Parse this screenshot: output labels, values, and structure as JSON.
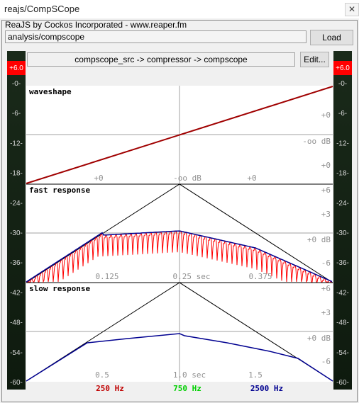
{
  "window": {
    "title": "reajs/CompSCope",
    "close_icon": "close-icon"
  },
  "plugin": {
    "info": "ReaJS by Cockos Incorporated - www.reaper.fm",
    "path": "analysis/compscope",
    "load_label": "Load",
    "edit_label": "Edit...",
    "chain": "compscope_src -> compressor -> compscope"
  },
  "meters": {
    "peak_label": "+6.0",
    "db_labels": [
      "-0-",
      "-6-",
      "-12-",
      "-18-",
      "-24-",
      "-30-",
      "-36-",
      "-42-",
      "-48-",
      "-54-",
      "-60-"
    ],
    "peak_color": "#ff0000",
    "body_color": "#142214"
  },
  "panels": {
    "waveshape": {
      "title": "waveshape",
      "right_labels": [
        "+0",
        "-oo dB",
        "+0"
      ],
      "bottom_labels": [
        "+0",
        "-oo dB",
        "+0"
      ]
    },
    "fast": {
      "title": "fast response",
      "right_labels": [
        "+6",
        "+3",
        "+0 dB",
        "-6"
      ],
      "time_labels": [
        "0.125",
        "0.25 sec",
        "0.375"
      ]
    },
    "slow": {
      "title": "slow response",
      "right_labels": [
        "+6",
        "+3",
        "+0 dB",
        "-6"
      ],
      "time_labels": [
        "0.5",
        "1.0 sec",
        "1.5"
      ]
    }
  },
  "frequencies": [
    {
      "label": "250 Hz",
      "color": "#c00000"
    },
    {
      "label": "750 Hz",
      "color": "#00d000"
    },
    {
      "label": "2500 Hz",
      "color": "#000090"
    }
  ],
  "chart_data": [
    {
      "type": "line",
      "title": "waveshape",
      "series": [
        {
          "x": [
            -1,
            1
          ],
          "y": [
            -1,
            1
          ]
        }
      ]
    },
    {
      "type": "line",
      "title": "fast response",
      "x": [
        0,
        0.05,
        0.1,
        0.15,
        0.2,
        0.25,
        0.3,
        0.35,
        0.4,
        0.45,
        0.5
      ],
      "series": [
        {
          "values": [
            -15,
            -8,
            -3.5,
            -1.2,
            -0.6,
            0,
            -2,
            -4.5,
            -7,
            -11,
            -15
          ]
        },
        {
          "values": [
            -15,
            -7.5,
            -3,
            -0.8,
            -0.3,
            0.3,
            -1.5,
            -4,
            -6.5,
            -10.5,
            -15
          ]
        }
      ]
    },
    {
      "type": "line",
      "title": "slow response",
      "x": [
        0,
        0.5,
        1.0,
        1.5,
        2.0
      ],
      "series": [
        {
          "values": [
            -15,
            -3,
            -0.2,
            -3,
            -15
          ]
        }
      ]
    }
  ]
}
